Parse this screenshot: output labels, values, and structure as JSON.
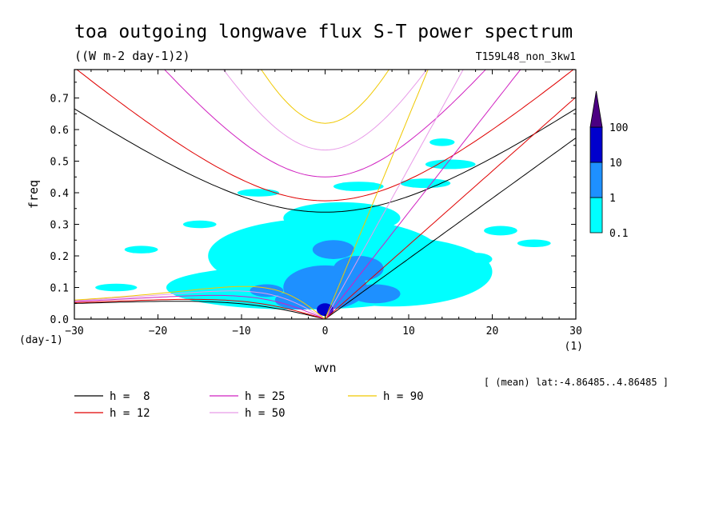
{
  "title": "toa outgoing longwave flux S-T power spectrum",
  "units": "((W m-2 day-1)2)",
  "run_name": "T159L48_non_3kw1",
  "annotation": "[ (mean) lat:-4.86485..4.86485 ]",
  "chart_data": {
    "type": "heatmap",
    "xlabel": "wvn",
    "ylabel": "freq",
    "x_unit": "(1)",
    "y_unit": "(day-1)",
    "xlim": [
      -30,
      30
    ],
    "ylim": [
      0.0,
      0.79
    ],
    "x_ticks": [
      -30,
      -20,
      -10,
      0,
      10,
      20,
      30
    ],
    "x_tick_labels": [
      "-30",
      "-20",
      "-10",
      "0",
      "10",
      "20",
      "30"
    ],
    "y_ticks": [
      0.0,
      0.1,
      0.2,
      0.3,
      0.4,
      0.5,
      0.6,
      0.7
    ],
    "y_tick_labels": [
      "0.0",
      "0.1",
      "0.2",
      "0.3",
      "0.4",
      "0.5",
      "0.6",
      "0.7"
    ],
    "colorbar": {
      "levels": [
        0.1,
        1,
        10,
        100
      ],
      "level_labels": [
        "0.1",
        "1",
        "10",
        "100"
      ],
      "colors": [
        "#00ffff",
        "#1e90ff",
        "#0000cd",
        "#4b0082"
      ],
      "extend": "max"
    },
    "power_regions": [
      {
        "level": 0.1,
        "blobs": [
          {
            "k": 0,
            "f": 0.2,
            "rk": 14,
            "rf": 0.12
          },
          {
            "k": -3,
            "f": 0.1,
            "rk": 16,
            "rf": 0.07
          },
          {
            "k": 8,
            "f": 0.15,
            "rk": 12,
            "rf": 0.11
          },
          {
            "k": 2,
            "f": 0.32,
            "rk": 7,
            "rf": 0.05
          },
          {
            "k": -8,
            "f": 0.4,
            "rk": 2.5,
            "rf": 0.012
          },
          {
            "k": 4,
            "f": 0.42,
            "rk": 3,
            "rf": 0.015
          },
          {
            "k": 12,
            "f": 0.43,
            "rk": 3,
            "rf": 0.015
          },
          {
            "k": 15,
            "f": 0.49,
            "rk": 3,
            "rf": 0.015
          },
          {
            "k": -15,
            "f": 0.3,
            "rk": 2,
            "rf": 0.012
          },
          {
            "k": -22,
            "f": 0.22,
            "rk": 2,
            "rf": 0.012
          },
          {
            "k": -25,
            "f": 0.1,
            "rk": 2.5,
            "rf": 0.012
          },
          {
            "k": 21,
            "f": 0.28,
            "rk": 2,
            "rf": 0.015
          },
          {
            "k": 25,
            "f": 0.24,
            "rk": 2,
            "rf": 0.012
          },
          {
            "k": 18,
            "f": 0.19,
            "rk": 2,
            "rf": 0.02
          },
          {
            "k": 14,
            "f": 0.56,
            "rk": 1.5,
            "rf": 0.012
          }
        ]
      },
      {
        "level": 1,
        "blobs": [
          {
            "k": 0,
            "f": 0.1,
            "rk": 5,
            "rf": 0.07
          },
          {
            "k": -3,
            "f": 0.06,
            "rk": 3,
            "rf": 0.03
          },
          {
            "k": 4,
            "f": 0.16,
            "rk": 3,
            "rf": 0.04
          },
          {
            "k": 1,
            "f": 0.22,
            "rk": 2.5,
            "rf": 0.03
          },
          {
            "k": 6,
            "f": 0.08,
            "rk": 3,
            "rf": 0.03
          },
          {
            "k": -7,
            "f": 0.09,
            "rk": 2,
            "rf": 0.02
          }
        ]
      },
      {
        "level": 10,
        "blobs": [
          {
            "k": 0,
            "f": 0.03,
            "rk": 1,
            "rf": 0.02
          }
        ]
      }
    ],
    "dispersion_curves": [
      {
        "name": "h =  8",
        "h": 8,
        "color": "#000000"
      },
      {
        "name": "h = 12",
        "h": 12,
        "color": "#e00000"
      },
      {
        "name": "h = 25",
        "h": 25,
        "color": "#d020c0"
      },
      {
        "name": "h = 50",
        "h": 50,
        "color": "#e89ae8"
      },
      {
        "name": "h = 90",
        "h": 90,
        "color": "#f0c800"
      }
    ],
    "legend_placement": "bottom-left"
  }
}
